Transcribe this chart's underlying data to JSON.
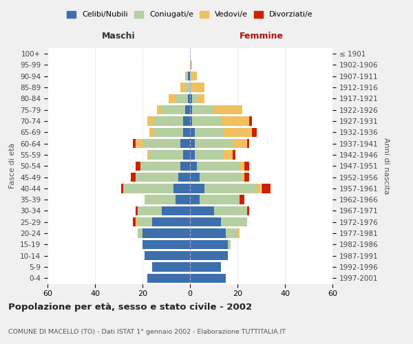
{
  "age_groups": [
    "0-4",
    "5-9",
    "10-14",
    "15-19",
    "20-24",
    "25-29",
    "30-34",
    "35-39",
    "40-44",
    "45-49",
    "50-54",
    "55-59",
    "60-64",
    "65-69",
    "70-74",
    "75-79",
    "80-84",
    "85-89",
    "90-94",
    "95-99",
    "100+"
  ],
  "birth_years": [
    "1997-2001",
    "1992-1996",
    "1987-1991",
    "1982-1986",
    "1977-1981",
    "1972-1976",
    "1967-1971",
    "1962-1966",
    "1957-1961",
    "1952-1956",
    "1947-1951",
    "1942-1946",
    "1937-1941",
    "1932-1936",
    "1927-1931",
    "1922-1926",
    "1917-1921",
    "1912-1916",
    "1907-1911",
    "1902-1906",
    "≤ 1901"
  ],
  "maschi": {
    "celibi": [
      18,
      16,
      19,
      20,
      20,
      16,
      12,
      6,
      7,
      5,
      4,
      3,
      4,
      3,
      3,
      2,
      1,
      0,
      1,
      0,
      0
    ],
    "coniugati": [
      0,
      0,
      0,
      0,
      2,
      6,
      10,
      13,
      21,
      18,
      17,
      14,
      16,
      12,
      12,
      10,
      5,
      2,
      1,
      0,
      0
    ],
    "vedovi": [
      0,
      0,
      0,
      0,
      0,
      1,
      0,
      0,
      0,
      0,
      0,
      1,
      3,
      2,
      3,
      2,
      3,
      2,
      0,
      0,
      0
    ],
    "divorziati": [
      0,
      0,
      0,
      0,
      0,
      1,
      1,
      0,
      1,
      2,
      2,
      0,
      1,
      0,
      0,
      0,
      0,
      0,
      0,
      0,
      0
    ]
  },
  "femmine": {
    "nubili": [
      15,
      13,
      16,
      16,
      15,
      13,
      10,
      4,
      6,
      4,
      3,
      2,
      2,
      2,
      1,
      1,
      1,
      0,
      0,
      0,
      0
    ],
    "coniugate": [
      0,
      0,
      0,
      1,
      5,
      11,
      14,
      17,
      22,
      18,
      18,
      12,
      16,
      12,
      12,
      9,
      2,
      1,
      1,
      0,
      0
    ],
    "vedove": [
      0,
      0,
      0,
      0,
      1,
      0,
      0,
      0,
      2,
      1,
      2,
      4,
      6,
      12,
      12,
      12,
      3,
      5,
      2,
      1,
      0
    ],
    "divorziate": [
      0,
      0,
      0,
      0,
      0,
      0,
      1,
      2,
      4,
      2,
      2,
      1,
      1,
      2,
      1,
      0,
      0,
      0,
      0,
      0,
      0
    ]
  },
  "colors": {
    "celibi_nubili": "#3d6fad",
    "coniugati": "#b5cfa0",
    "vedovi": "#f0c060",
    "divorziati": "#cc2200"
  },
  "xlim": 60,
  "title": "Popolazione per età, sesso e stato civile - 2002",
  "subtitle": "COMUNE DI MACELLO (TO) - Dati ISTAT 1° gennaio 2002 - Elaborazione TUTTITALIA.IT",
  "xlabel_left": "Maschi",
  "xlabel_right": "Femmine",
  "ylabel_left": "Fasce di età",
  "ylabel_right": "Anni di nascita",
  "bg_color": "#f0f0f0",
  "plot_bg": "#ffffff"
}
